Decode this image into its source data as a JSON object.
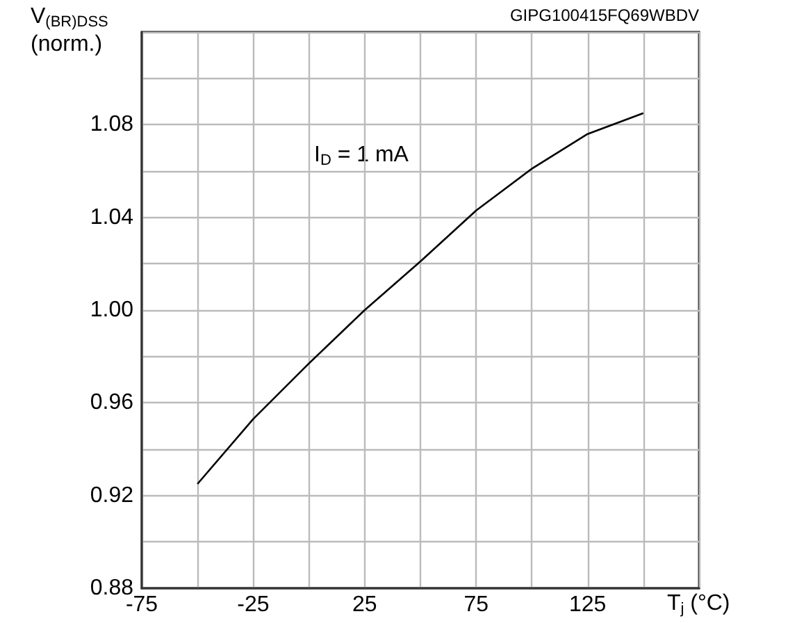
{
  "chart_data": {
    "type": "line",
    "xlabel": "T$_{j}$ (°C)",
    "ylabel": "V$_{(BR)DSS}$\n(norm.)",
    "annotations": [
      "I$_{D}$ = 1 mA",
      "GIPG100415FQ69WBDV"
    ],
    "x": [
      -50,
      -25,
      0,
      25,
      50,
      75,
      100,
      125,
      150
    ],
    "series": [
      {
        "color": "#000000",
        "values": [
          0.925,
          0.953,
          0.977,
          1.0,
          1.021,
          1.043,
          1.061,
          1.076,
          1.085
        ]
      }
    ],
    "xlim": [
      -75,
      175
    ],
    "xticks": [
      -75,
      {
        "value": -50,
        "label": null
      },
      -25,
      {
        "value": 0,
        "label": null
      },
      25,
      {
        "value": 50,
        "label": null
      },
      75,
      {
        "value": 100,
        "label": null
      },
      125,
      {
        "value": 150,
        "label": null
      },
      {
        "value": 175,
        "label": null
      }
    ],
    "ylim": [
      0.88,
      1.12
    ],
    "yticks": [
      {
        "value": 0.88,
        "label": "0.88"
      },
      {
        "value": 0.9,
        "label": null
      },
      {
        "value": 0.92,
        "label": "0.92"
      },
      {
        "value": 0.94,
        "label": null
      },
      {
        "value": 0.96,
        "label": "0.96"
      },
      {
        "value": 0.98,
        "label": null
      },
      {
        "value": 1.0,
        "label": "1.00"
      },
      {
        "value": 1.02,
        "label": null
      },
      {
        "value": 1.04,
        "label": "1.04"
      },
      {
        "value": 1.06,
        "label": null
      },
      {
        "value": 1.08,
        "label": "1.08"
      },
      {
        "value": 1.1,
        "label": null
      },
      {
        "value": 1.12,
        "label": null
      }
    ],
    "grid": true,
    "marker": "none",
    "line_style": "solid"
  }
}
